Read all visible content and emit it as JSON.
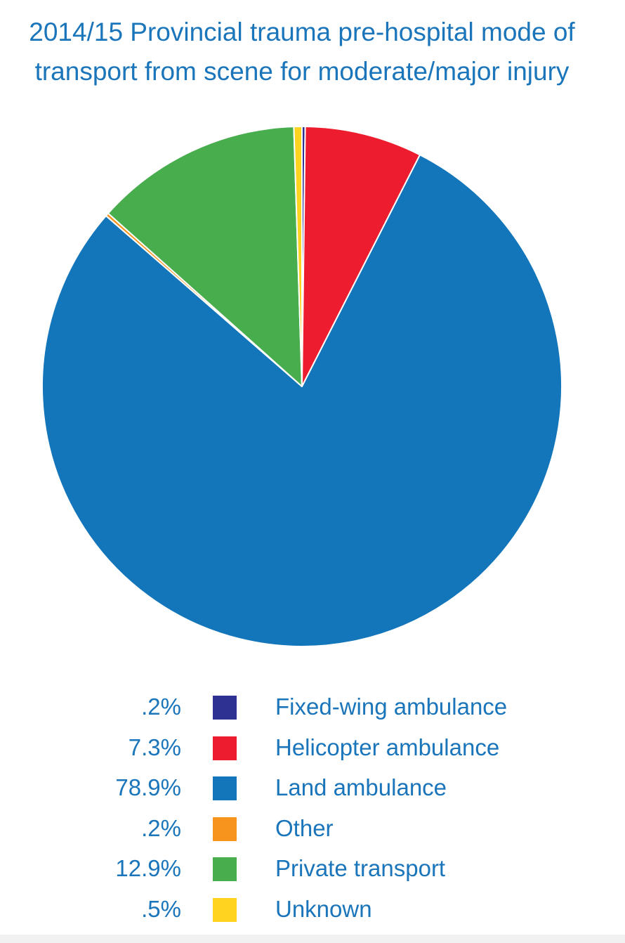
{
  "chart_data": {
    "type": "pie",
    "title_lines": [
      "2014/15 Provincial trauma pre-hospital mode of",
      "transport from scene for moderate/major injury"
    ],
    "slices": [
      {
        "label": "Fixed-wing ambulance",
        "value": 0.2,
        "value_label": ".2%",
        "color": "#2e3192"
      },
      {
        "label": "Helicopter ambulance",
        "value": 7.3,
        "value_label": "7.3%",
        "color": "#ed1c2e"
      },
      {
        "label": "Land ambulance",
        "value": 78.9,
        "value_label": "78.9%",
        "color": "#1375ba"
      },
      {
        "label": "Other",
        "value": 0.2,
        "value_label": ".2%",
        "color": "#f7941d"
      },
      {
        "label": "Private transport",
        "value": 12.9,
        "value_label": "12.9%",
        "color": "#47ad4d"
      },
      {
        "label": "Unknown",
        "value": 0.5,
        "value_label": ".5%",
        "color": "#ffd320"
      }
    ],
    "legend_position": "bottom"
  }
}
